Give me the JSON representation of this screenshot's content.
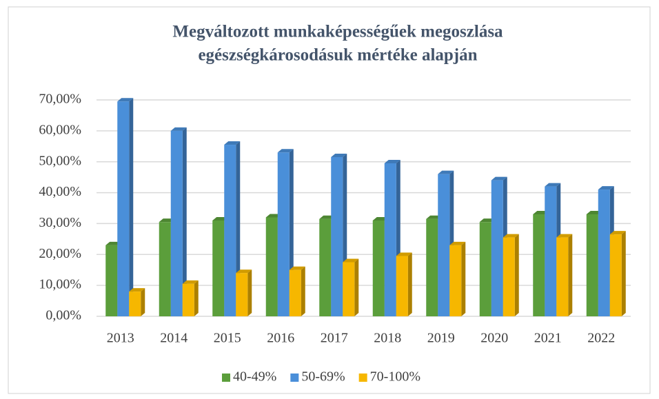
{
  "chart_data": {
    "type": "bar3d",
    "title": [
      "Megváltozott munkaképességűek megoszlása",
      "egészségkárosodásuk mértéke alapján"
    ],
    "categories": [
      "2013",
      "2014",
      "2015",
      "2016",
      "2017",
      "2018",
      "2019",
      "2020",
      "2021",
      "2022"
    ],
    "series": [
      {
        "name": "40-49%",
        "color": "#5b9e3b",
        "values": [
          23,
          30.5,
          31,
          32,
          31.5,
          31,
          31.5,
          30.5,
          33,
          33
        ]
      },
      {
        "name": "50-69%",
        "color": "#4a8fd9",
        "values": [
          69.5,
          60,
          55.5,
          53,
          51.5,
          49.5,
          46,
          44,
          42,
          41
        ]
      },
      {
        "name": "70-100%",
        "color": "#f6b700",
        "values": [
          8,
          10.5,
          14,
          15,
          17.5,
          19.5,
          23,
          25.5,
          25.5,
          26.5
        ]
      }
    ],
    "ylim": [
      0,
      70
    ],
    "yticks": [
      {
        "value": 0,
        "label": "0,00%"
      },
      {
        "value": 10,
        "label": "10,00%"
      },
      {
        "value": 20,
        "label": "20,00%"
      },
      {
        "value": 30,
        "label": "30,00%"
      },
      {
        "value": 40,
        "label": "40,00%"
      },
      {
        "value": 50,
        "label": "50,00%"
      },
      {
        "value": 60,
        "label": "60,00%"
      },
      {
        "value": 70,
        "label": "70,00%"
      }
    ],
    "grid": true,
    "legend": "bottom"
  }
}
